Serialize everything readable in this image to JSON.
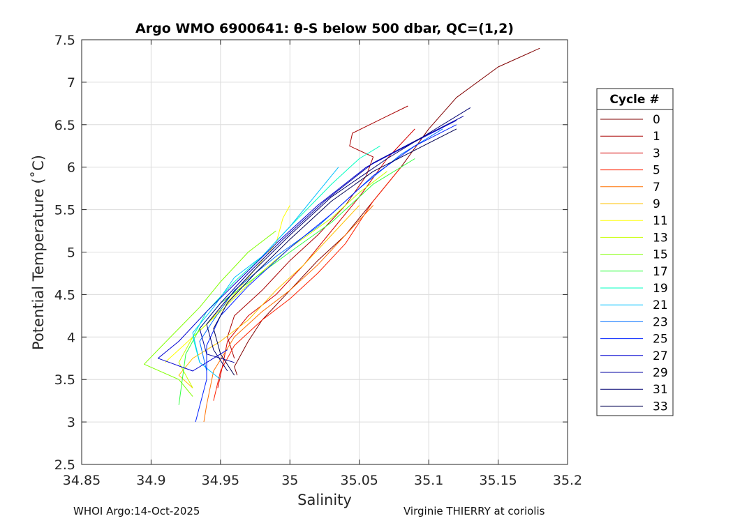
{
  "chart_data": {
    "type": "line",
    "title": "Argo WMO 6900641: θ-S below 500 dbar,  QC=(1,2)",
    "xlabel": "Salinity",
    "ylabel": "Potential Temperature (˚C)",
    "xlim": [
      34.85,
      35.2
    ],
    "ylim": [
      2.5,
      7.5
    ],
    "xticks": [
      "34.85",
      "34.9",
      "34.95",
      "35",
      "35.05",
      "35.1",
      "35.15",
      "35.2"
    ],
    "yticks": [
      "2.5",
      "3",
      "3.5",
      "4",
      "4.5",
      "5",
      "5.5",
      "6",
      "6.5",
      "7",
      "7.5"
    ],
    "grid": true,
    "legend_title": "Cycle #",
    "legend_position": "right",
    "series": [
      {
        "name": "0",
        "color": "#800000",
        "points": [
          [
            35.18,
            7.4
          ],
          [
            35.15,
            7.18
          ],
          [
            35.12,
            6.82
          ],
          [
            35.1,
            6.45
          ],
          [
            35.08,
            6.0
          ],
          [
            35.06,
            5.6
          ],
          [
            35.04,
            5.2
          ],
          [
            35.02,
            4.9
          ],
          [
            35.0,
            4.55
          ],
          [
            34.98,
            4.2
          ],
          [
            34.97,
            3.95
          ],
          [
            34.96,
            3.65
          ],
          [
            34.962,
            3.55
          ]
        ]
      },
      {
        "name": "1",
        "color": "#a80000",
        "points": [
          [
            35.085,
            6.72
          ],
          [
            35.07,
            6.6
          ],
          [
            35.045,
            6.4
          ],
          [
            35.043,
            6.25
          ],
          [
            35.06,
            6.12
          ],
          [
            35.055,
            5.9
          ],
          [
            35.04,
            5.55
          ],
          [
            35.02,
            5.2
          ],
          [
            35.0,
            4.9
          ],
          [
            34.98,
            4.55
          ],
          [
            34.96,
            4.25
          ],
          [
            34.955,
            4.0
          ],
          [
            34.96,
            3.75
          ]
        ]
      },
      {
        "name": "3",
        "color": "#d40000",
        "points": [
          [
            35.09,
            6.45
          ],
          [
            35.07,
            6.1
          ],
          [
            35.05,
            5.65
          ],
          [
            35.03,
            5.25
          ],
          [
            35.01,
            4.85
          ],
          [
            34.99,
            4.5
          ],
          [
            34.97,
            4.25
          ],
          [
            34.955,
            3.95
          ],
          [
            34.952,
            3.7
          ],
          [
            34.948,
            3.4
          ]
        ]
      },
      {
        "name": "5",
        "color": "#ff2000",
        "points": [
          [
            35.08,
            6.0
          ],
          [
            35.06,
            5.6
          ],
          [
            35.04,
            5.1
          ],
          [
            35.02,
            4.75
          ],
          [
            35.0,
            4.45
          ],
          [
            34.98,
            4.2
          ],
          [
            34.96,
            3.9
          ],
          [
            34.95,
            3.6
          ],
          [
            34.945,
            3.25
          ]
        ]
      },
      {
        "name": "7",
        "color": "#ff7000",
        "points": [
          [
            35.06,
            5.55
          ],
          [
            35.04,
            5.2
          ],
          [
            35.02,
            4.85
          ],
          [
            35.0,
            4.55
          ],
          [
            34.98,
            4.3
          ],
          [
            34.96,
            4.0
          ],
          [
            34.945,
            3.6
          ],
          [
            34.94,
            3.2
          ],
          [
            34.938,
            3.0
          ]
        ]
      },
      {
        "name": "9",
        "color": "#ffc000",
        "points": [
          [
            35.05,
            5.55
          ],
          [
            35.03,
            5.2
          ],
          [
            35.01,
            4.85
          ],
          [
            34.99,
            4.55
          ],
          [
            34.97,
            4.2
          ],
          [
            34.95,
            3.95
          ],
          [
            34.93,
            3.75
          ],
          [
            34.92,
            3.55
          ],
          [
            34.93,
            3.4
          ]
        ]
      },
      {
        "name": "11",
        "color": "#ffff00",
        "points": [
          [
            35.0,
            5.55
          ],
          [
            34.995,
            5.4
          ],
          [
            34.99,
            5.1
          ],
          [
            34.975,
            4.8
          ],
          [
            34.96,
            4.5
          ],
          [
            34.94,
            4.15
          ],
          [
            34.92,
            3.85
          ],
          [
            34.91,
            3.7
          ]
        ]
      },
      {
        "name": "13",
        "color": "#c8ff00",
        "points": [
          [
            35.07,
            5.95
          ],
          [
            35.05,
            5.7
          ],
          [
            35.03,
            5.4
          ],
          [
            35.0,
            5.05
          ],
          [
            34.975,
            4.7
          ],
          [
            34.95,
            4.3
          ],
          [
            34.93,
            4.0
          ],
          [
            34.92,
            3.7
          ],
          [
            34.93,
            3.4
          ]
        ]
      },
      {
        "name": "15",
        "color": "#80ff00",
        "points": [
          [
            34.99,
            5.25
          ],
          [
            34.97,
            5.0
          ],
          [
            34.95,
            4.65
          ],
          [
            34.935,
            4.35
          ],
          [
            34.92,
            4.1
          ],
          [
            34.905,
            3.85
          ],
          [
            34.895,
            3.68
          ],
          [
            34.92,
            3.5
          ],
          [
            34.93,
            3.3
          ]
        ]
      },
      {
        "name": "17",
        "color": "#30ff40",
        "points": [
          [
            35.09,
            6.1
          ],
          [
            35.06,
            5.8
          ],
          [
            35.03,
            5.35
          ],
          [
            35.0,
            5.0
          ],
          [
            34.975,
            4.7
          ],
          [
            34.95,
            4.4
          ],
          [
            34.935,
            4.1
          ],
          [
            34.925,
            3.8
          ],
          [
            34.92,
            3.2
          ]
        ]
      },
      {
        "name": "19",
        "color": "#00ffc0",
        "points": [
          [
            35.065,
            6.25
          ],
          [
            35.05,
            6.1
          ],
          [
            35.03,
            5.8
          ],
          [
            35.0,
            5.3
          ],
          [
            34.98,
            4.95
          ],
          [
            34.96,
            4.65
          ],
          [
            34.94,
            4.3
          ],
          [
            34.93,
            4.0
          ],
          [
            34.935,
            3.7
          ]
        ]
      },
      {
        "name": "21",
        "color": "#00c0ff",
        "points": [
          [
            35.035,
            6.0
          ],
          [
            35.02,
            5.7
          ],
          [
            35.0,
            5.3
          ],
          [
            34.98,
            4.95
          ],
          [
            34.96,
            4.7
          ],
          [
            34.945,
            4.35
          ],
          [
            34.93,
            4.05
          ],
          [
            34.935,
            3.7
          ],
          [
            34.95,
            3.5
          ]
        ]
      },
      {
        "name": "23",
        "color": "#0070ff",
        "points": [
          [
            35.11,
            6.45
          ],
          [
            35.08,
            6.15
          ],
          [
            35.05,
            5.75
          ],
          [
            35.02,
            5.3
          ],
          [
            34.99,
            4.95
          ],
          [
            34.96,
            4.55
          ],
          [
            34.945,
            4.2
          ],
          [
            34.935,
            3.95
          ],
          [
            34.94,
            3.6
          ]
        ]
      },
      {
        "name": "25",
        "color": "#0020ff",
        "points": [
          [
            35.12,
            6.5
          ],
          [
            35.09,
            6.25
          ],
          [
            35.06,
            5.9
          ],
          [
            35.03,
            5.45
          ],
          [
            35.0,
            5.05
          ],
          [
            34.97,
            4.6
          ],
          [
            34.95,
            4.25
          ],
          [
            34.94,
            3.9
          ],
          [
            34.94,
            3.5
          ],
          [
            34.932,
            3.0
          ]
        ]
      },
      {
        "name": "27",
        "color": "#0000d0",
        "points": [
          [
            35.12,
            6.55
          ],
          [
            35.09,
            6.3
          ],
          [
            35.055,
            6.0
          ],
          [
            35.02,
            5.55
          ],
          [
            34.99,
            5.1
          ],
          [
            34.965,
            4.7
          ],
          [
            34.94,
            4.3
          ],
          [
            34.92,
            3.95
          ],
          [
            34.905,
            3.75
          ],
          [
            34.93,
            3.6
          ],
          [
            34.955,
            3.85
          ]
        ]
      },
      {
        "name": "29",
        "color": "#0000a0",
        "points": [
          [
            35.125,
            6.6
          ],
          [
            35.095,
            6.35
          ],
          [
            35.06,
            6.05
          ],
          [
            35.025,
            5.6
          ],
          [
            34.995,
            5.15
          ],
          [
            34.97,
            4.75
          ],
          [
            34.95,
            4.4
          ],
          [
            34.935,
            4.1
          ],
          [
            34.94,
            3.8
          ],
          [
            34.96,
            3.7
          ]
        ]
      },
      {
        "name": "31",
        "color": "#000070",
        "points": [
          [
            35.13,
            6.7
          ],
          [
            35.1,
            6.4
          ],
          [
            35.07,
            6.1
          ],
          [
            35.03,
            5.65
          ],
          [
            35.0,
            5.2
          ],
          [
            34.975,
            4.8
          ],
          [
            34.955,
            4.45
          ],
          [
            34.94,
            4.15
          ],
          [
            34.945,
            3.85
          ],
          [
            34.955,
            3.6
          ]
        ]
      },
      {
        "name": "33",
        "color": "#000050",
        "points": [
          [
            35.12,
            6.45
          ],
          [
            35.09,
            6.2
          ],
          [
            35.06,
            5.95
          ],
          [
            35.03,
            5.6
          ],
          [
            35.0,
            5.15
          ],
          [
            34.975,
            4.75
          ],
          [
            34.955,
            4.4
          ],
          [
            34.945,
            4.1
          ],
          [
            34.95,
            3.8
          ],
          [
            34.96,
            3.55
          ]
        ]
      }
    ]
  },
  "footer": {
    "left": "WHOI Argo:14-Oct-2025",
    "right": "Virginie THIERRY at coriolis"
  }
}
